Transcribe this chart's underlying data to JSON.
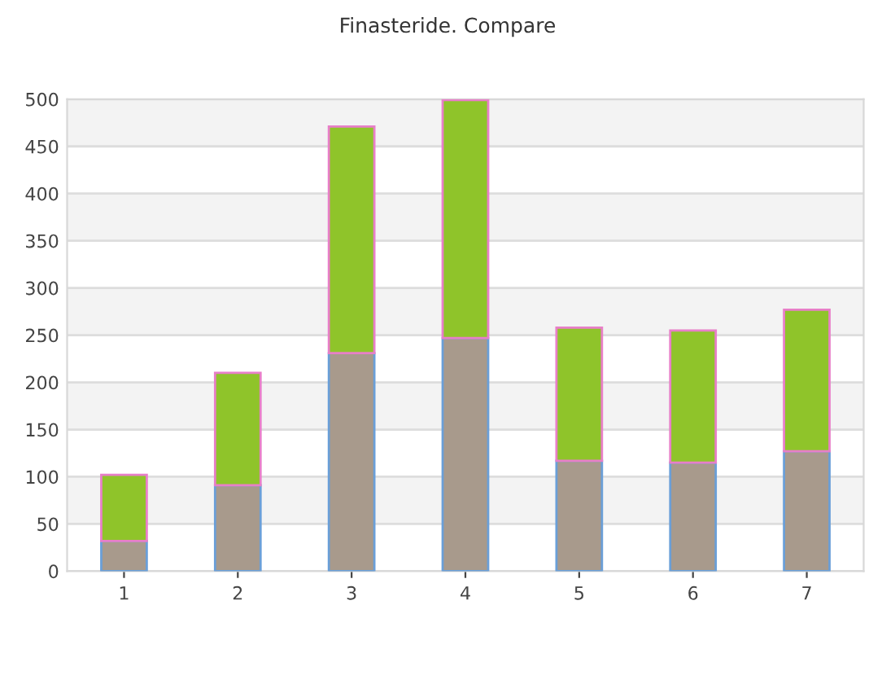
{
  "chart_data": {
    "type": "bar",
    "title": "Finasteride. Compare",
    "stacked": true,
    "categories": [
      "1",
      "2",
      "3",
      "4",
      "5",
      "6",
      "7"
    ],
    "series": [
      {
        "color": "#a89a8c",
        "values": [
          32,
          91,
          231,
          247,
          117,
          115,
          127
        ]
      },
      {
        "color": "#8fc42a",
        "values": [
          70,
          119,
          240,
          252,
          141,
          140,
          150
        ]
      }
    ],
    "ylim": [
      0,
      500
    ],
    "yticks": [
      0,
      50,
      100,
      150,
      200,
      250,
      300,
      350,
      400,
      450,
      500
    ],
    "grid": "y",
    "legend": false
  }
}
